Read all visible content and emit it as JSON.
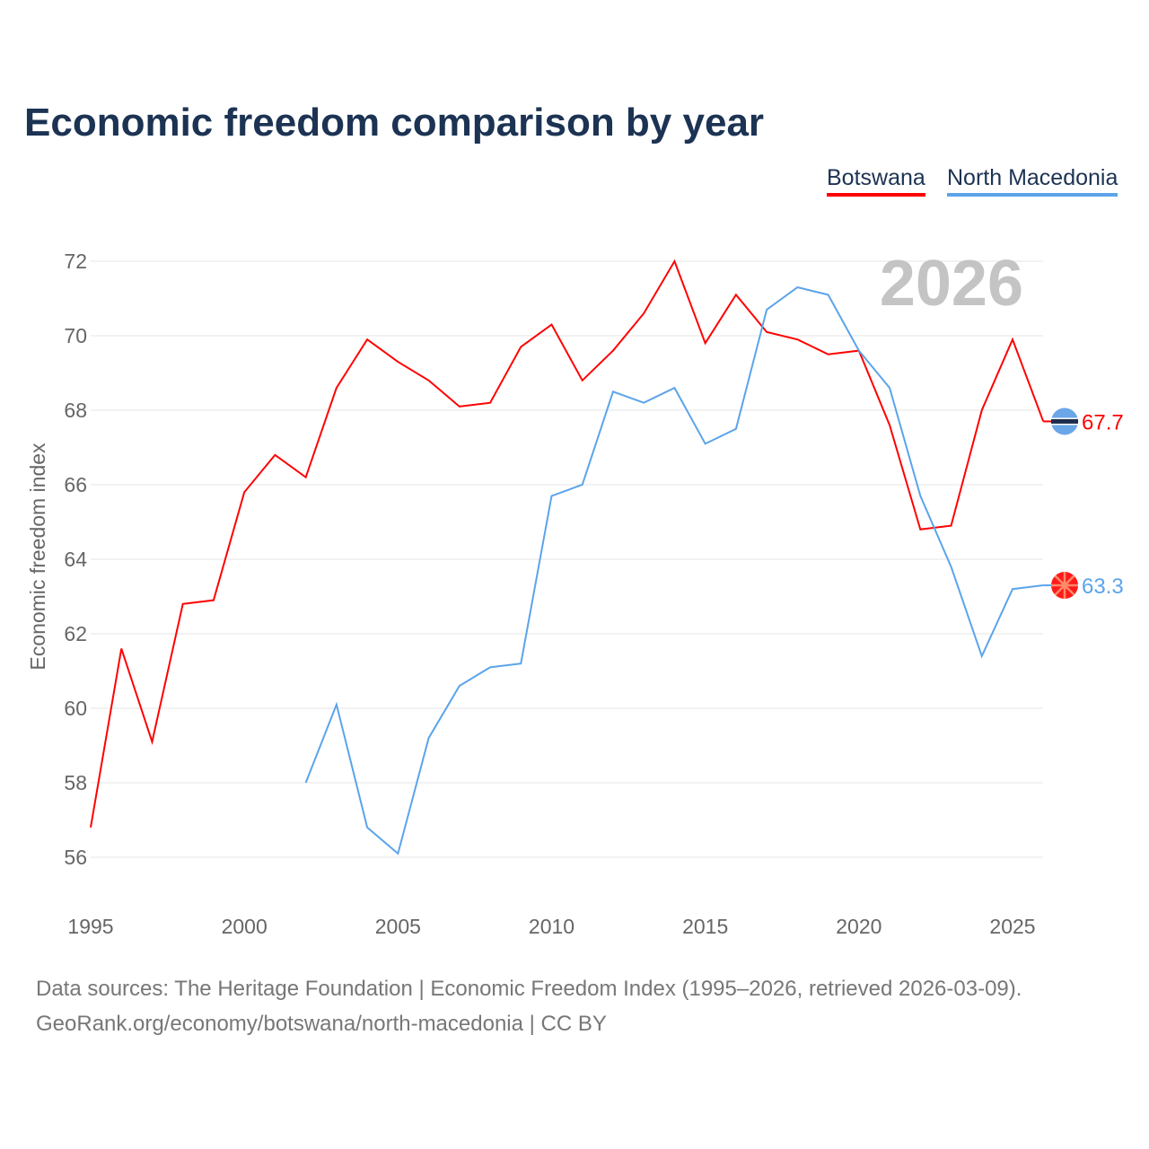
{
  "chart_data": {
    "type": "line",
    "title": "Economic freedom comparison by year",
    "ylabel": "Economic freedom index",
    "xlabel": "",
    "ylim": [
      56,
      72
    ],
    "xlim": [
      1995,
      2026
    ],
    "yticks": [
      56,
      58,
      60,
      62,
      64,
      66,
      68,
      70,
      72
    ],
    "xticks": [
      1995,
      2000,
      2005,
      2010,
      2015,
      2020,
      2025
    ],
    "grid": true,
    "watermark_year": "2026",
    "legend_position": "top-right",
    "series": [
      {
        "name": "Botswana",
        "color": "#ff0000",
        "start": 1995,
        "values": [
          56.8,
          61.6,
          59.1,
          62.8,
          62.9,
          65.8,
          66.8,
          66.2,
          68.6,
          69.9,
          69.3,
          68.8,
          68.1,
          68.2,
          69.7,
          70.3,
          68.8,
          69.6,
          70.6,
          72.0,
          69.8,
          71.1,
          70.1,
          69.9,
          69.5,
          69.6,
          67.6,
          64.8,
          64.9,
          68.0,
          69.9,
          67.7
        ],
        "end_label": "67.7"
      },
      {
        "name": "North Macedonia",
        "color": "#5ba4ea",
        "start": 2002,
        "values": [
          58.0,
          60.1,
          56.8,
          56.1,
          59.2,
          60.6,
          61.1,
          61.2,
          65.7,
          66.0,
          68.5,
          68.2,
          68.6,
          67.1,
          67.5,
          70.7,
          71.3,
          71.1,
          69.6,
          68.6,
          65.7,
          63.8,
          61.4,
          63.2,
          63.3
        ],
        "end_label": "63.3"
      }
    ]
  },
  "footer": {
    "line1": "Data sources: The Heritage Foundation | Economic Freedom Index (1995–2026, retrieved 2026-03-09).",
    "line2": "GeoRank.org/economy/botswana/north-macedonia | CC BY"
  }
}
